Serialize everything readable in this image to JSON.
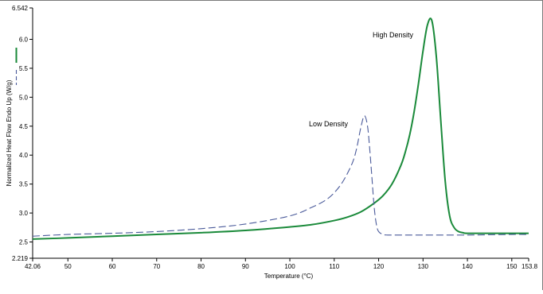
{
  "chart_data": {
    "type": "line",
    "xlabel": "Temperature (°C)",
    "ylabel": "Normalized Heat Flow Endo Up (W/g)",
    "xlim": [
      42.06,
      153.8
    ],
    "ylim": [
      2.219,
      6.542
    ],
    "x_ticks": [
      "42.06",
      "50",
      "60",
      "70",
      "80",
      "90",
      "100",
      "110",
      "120",
      "130",
      "140",
      "150",
      "153.8"
    ],
    "y_ticks": [
      "2.219",
      "2.5",
      "3.0",
      "3.5",
      "4.0",
      "4.5",
      "5.0",
      "5.5",
      "6.0",
      "6.542"
    ],
    "annotations": [
      "High Density",
      "Low Density"
    ],
    "legend_style": "vertical line markers on left",
    "series": [
      {
        "style": "solid",
        "color": "#1a8a3a",
        "x": [
          42.06,
          50,
          60,
          70,
          80,
          90,
          100,
          105,
          110,
          113,
          116,
          119,
          121,
          123,
          125,
          126,
          127,
          128,
          129,
          130,
          131,
          132,
          133,
          134,
          135,
          136,
          137,
          138,
          139,
          140,
          145,
          150,
          153.8
        ],
        "y": [
          2.55,
          2.57,
          2.6,
          2.63,
          2.66,
          2.7,
          2.76,
          2.8,
          2.87,
          2.93,
          3.02,
          3.17,
          3.3,
          3.5,
          3.82,
          4.05,
          4.35,
          4.75,
          5.25,
          5.8,
          6.25,
          6.32,
          5.7,
          4.6,
          3.55,
          2.95,
          2.75,
          2.68,
          2.66,
          2.65,
          2.65,
          2.65,
          2.65
        ]
      },
      {
        "style": "dashed",
        "color": "#4a5a9a",
        "x": [
          42.06,
          50,
          60,
          70,
          80,
          90,
          100,
          105,
          108,
          110,
          112,
          114,
          115,
          116,
          116.8,
          117.5,
          118,
          118.5,
          119,
          119.5,
          120,
          121,
          122,
          125,
          130,
          140,
          150,
          153.8
        ],
        "y": [
          2.6,
          2.63,
          2.65,
          2.68,
          2.73,
          2.81,
          2.95,
          3.1,
          3.22,
          3.35,
          3.55,
          3.85,
          4.1,
          4.48,
          4.68,
          4.5,
          4.1,
          3.6,
          3.1,
          2.8,
          2.68,
          2.63,
          2.62,
          2.62,
          2.62,
          2.62,
          2.63,
          2.63
        ]
      }
    ]
  }
}
